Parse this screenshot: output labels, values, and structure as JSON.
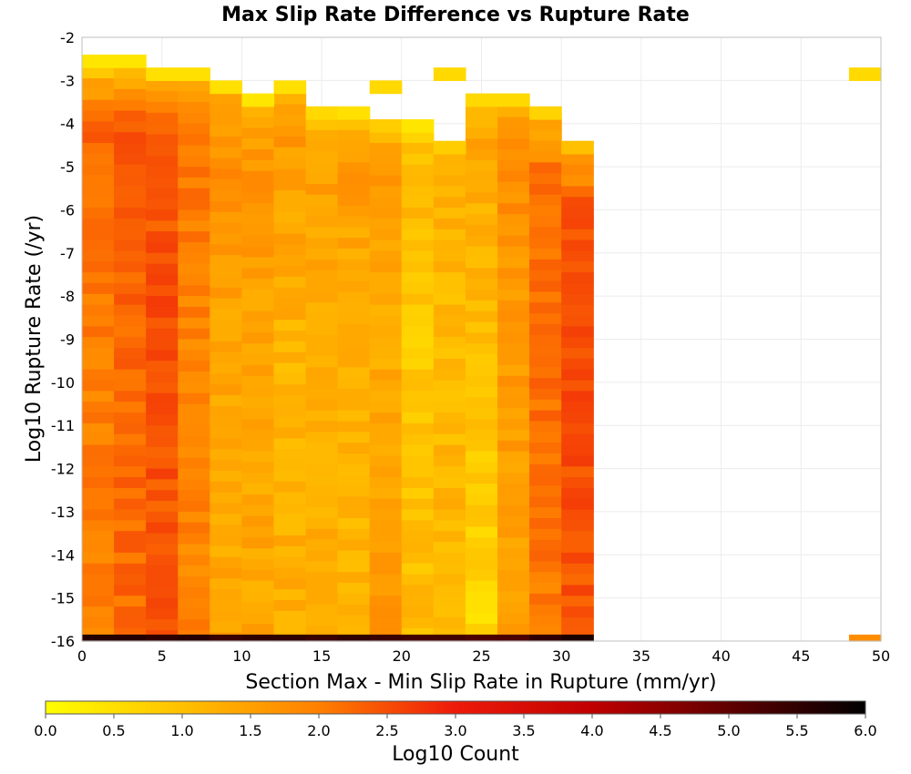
{
  "chart_data": {
    "type": "heatmap",
    "title": "Max Slip Rate Difference vs Rupture Rate",
    "xlabel": "Section Max - Min Slip Rate in Rupture (mm/yr)",
    "ylabel": "Log10 Rupture Rate (/yr)",
    "xlim": [
      0,
      50
    ],
    "ylim": [
      -16,
      -2
    ],
    "x_ticks": [
      "0",
      "5",
      "10",
      "15",
      "20",
      "25",
      "30",
      "35",
      "40",
      "45",
      "50"
    ],
    "y_ticks": [
      "-2",
      "-3",
      "-4",
      "-5",
      "-6",
      "-7",
      "-8",
      "-9",
      "-10",
      "-11",
      "-12",
      "-13",
      "-14",
      "-15",
      "-16"
    ],
    "grid": true,
    "x_bin_width": 2,
    "y_bin_height": 0.25,
    "colorbar": {
      "label": "Log10 Count",
      "range": [
        0.0,
        6.0
      ],
      "ticks": [
        "0.0",
        "0.5",
        "1.0",
        "1.5",
        "2.0",
        "2.5",
        "3.0",
        "3.5",
        "4.0",
        "4.5",
        "5.0",
        "5.5",
        "6.0"
      ],
      "stops": [
        {
          "v": 0.0,
          "c": "#ffff00"
        },
        {
          "v": 1.0,
          "c": "#ffc000"
        },
        {
          "v": 2.0,
          "c": "#ff8000"
        },
        {
          "v": 3.0,
          "c": "#ee1a0a"
        },
        {
          "v": 4.0,
          "c": "#c00000"
        },
        {
          "v": 5.0,
          "c": "#600000"
        },
        {
          "v": 6.0,
          "c": "#000000"
        }
      ]
    },
    "cells": [
      {
        "x": 0,
        "y_top": -2.4,
        "y_bottom": -2.7,
        "v": 0.4
      },
      {
        "x": 2,
        "y_top": -2.4,
        "y_bottom": -2.7,
        "v": 0.4
      },
      {
        "x": 4,
        "y_top": -2.7,
        "y_bottom": -3.0,
        "v": 0.5
      },
      {
        "x": 6,
        "y_top": -2.7,
        "y_bottom": -3.0,
        "v": 0.5
      },
      {
        "x": 8,
        "y_top": -3.0,
        "y_bottom": -3.3,
        "v": 0.5
      },
      {
        "x": 10,
        "y_top": -3.3,
        "y_bottom": -3.6,
        "v": 0.4
      },
      {
        "x": 12,
        "y_top": -3.0,
        "y_bottom": -3.3,
        "v": 0.5
      },
      {
        "x": 14,
        "y_top": -3.6,
        "y_bottom": -3.9,
        "v": 0.6
      },
      {
        "x": 16,
        "y_top": -3.6,
        "y_bottom": -3.9,
        "v": 0.5
      },
      {
        "x": 18,
        "y_top": -3.0,
        "y_bottom": -3.3,
        "v": 0.6
      },
      {
        "x": 18,
        "y_top": -3.9,
        "y_bottom": -4.2,
        "v": 0.8
      },
      {
        "x": 20,
        "y_top": -3.9,
        "y_bottom": -4.2,
        "v": 0.4
      },
      {
        "x": 22,
        "y_top": -2.7,
        "y_bottom": -3.0,
        "v": 0.6
      },
      {
        "x": 22,
        "y_top": -4.4,
        "y_bottom": -4.7,
        "v": 0.8
      },
      {
        "x": 24,
        "y_top": -3.3,
        "y_bottom": -3.6,
        "v": 0.6
      },
      {
        "x": 26,
        "y_top": -3.3,
        "y_bottom": -3.6,
        "v": 0.6
      },
      {
        "x": 28,
        "y_top": -3.6,
        "y_bottom": -3.9,
        "v": 0.7
      },
      {
        "x": 30,
        "y_top": -4.4,
        "y_bottom": -4.7,
        "v": 1.0
      },
      {
        "x": 48,
        "y_top": -2.7,
        "y_bottom": -3.0,
        "v": 0.6
      },
      {
        "x": 48,
        "y_top": -15.85,
        "y_bottom": -16.0,
        "v": 1.8
      }
    ],
    "column_top": [
      -2.7,
      -2.7,
      -3.0,
      -3.0,
      -3.3,
      -3.6,
      -3.3,
      -3.9,
      -3.9,
      -4.2,
      -4.2,
      -4.7,
      -3.6,
      -3.6,
      -3.9,
      -4.7
    ],
    "column_profiles": [
      {
        "top": 1.1,
        "upper": 2.3,
        "mid": 2.0,
        "bottom": 2.0
      },
      {
        "top": 1.2,
        "upper": 2.4,
        "mid": 2.3,
        "bottom": 2.2
      },
      {
        "top": 1.3,
        "upper": 2.4,
        "mid": 2.5,
        "bottom": 2.4
      },
      {
        "top": 1.3,
        "upper": 2.1,
        "mid": 1.9,
        "bottom": 1.9
      },
      {
        "top": 1.3,
        "upper": 1.8,
        "mid": 1.4,
        "bottom": 1.4
      },
      {
        "top": 1.2,
        "upper": 1.7,
        "mid": 1.4,
        "bottom": 1.4
      },
      {
        "top": 1.2,
        "upper": 1.6,
        "mid": 1.2,
        "bottom": 1.3
      },
      {
        "top": 1.0,
        "upper": 1.5,
        "mid": 1.3,
        "bottom": 1.3
      },
      {
        "top": 1.1,
        "upper": 1.6,
        "mid": 1.2,
        "bottom": 1.2
      },
      {
        "top": 1.2,
        "upper": 1.6,
        "mid": 1.3,
        "bottom": 1.7
      },
      {
        "top": 0.9,
        "upper": 1.2,
        "mid": 0.8,
        "bottom": 1.1
      },
      {
        "top": 1.1,
        "upper": 1.2,
        "mid": 1.1,
        "bottom": 1.2
      },
      {
        "top": 1.2,
        "upper": 1.4,
        "mid": 1.0,
        "bottom": 0.6
      },
      {
        "top": 1.3,
        "upper": 1.8,
        "mid": 1.6,
        "bottom": 1.5
      },
      {
        "top": 1.4,
        "upper": 2.1,
        "mid": 2.2,
        "bottom": 2.0
      },
      {
        "top": 1.5,
        "upper": 2.4,
        "mid": 2.6,
        "bottom": 2.4
      }
    ],
    "bottom_row": {
      "y_top": -15.85,
      "y_bottom": -16.0,
      "values": [
        5.6,
        5.6,
        5.5,
        5.6,
        5.4,
        5.5,
        5.5,
        5.4,
        5.5,
        5.4,
        5.3,
        5.3,
        5.2,
        5.2,
        5.5,
        5.7
      ]
    }
  }
}
